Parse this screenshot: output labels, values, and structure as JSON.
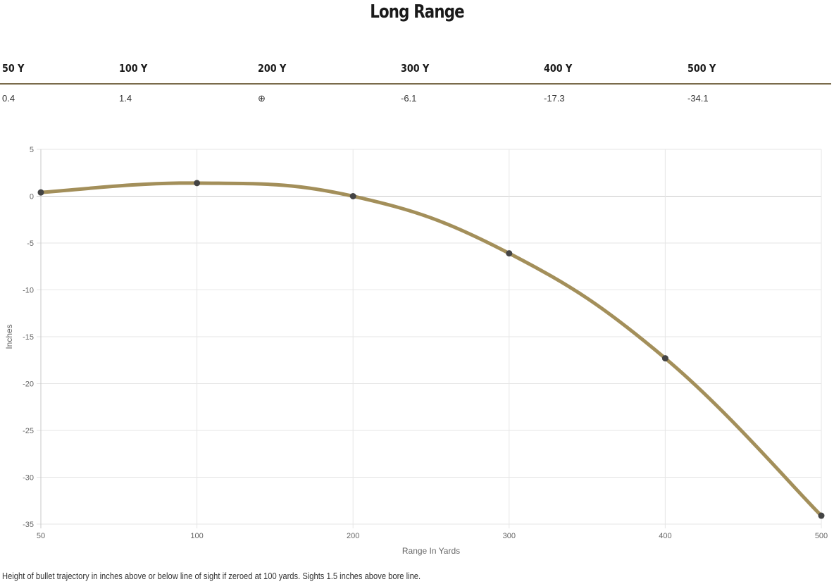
{
  "title": "Long Range",
  "table": {
    "headers": [
      "50 Y",
      "100 Y",
      "200 Y",
      "300 Y",
      "400 Y",
      "500 Y"
    ],
    "values": [
      "0.4",
      "1.4",
      "⊕",
      "-6.1",
      "-17.3",
      "-34.1"
    ]
  },
  "caption": "Height of bullet trajectory in inches above or below line of sight if zeroed at 100 yards. Sights 1.5 inches above bore line.",
  "chart_data": {
    "type": "line",
    "categories": [
      "50",
      "100",
      "200",
      "300",
      "400",
      "500"
    ],
    "values": [
      0.4,
      1.4,
      0,
      -6.1,
      -17.3,
      -34.1
    ],
    "xlabel": "Range In Yards",
    "ylabel": "Inches",
    "ylim": [
      -35,
      5
    ],
    "yticks": [
      5,
      0,
      -5,
      -10,
      -15,
      -20,
      -25,
      -30,
      -35
    ],
    "grid": true,
    "line_color": "#a38f5a",
    "point_color": "#444444"
  }
}
